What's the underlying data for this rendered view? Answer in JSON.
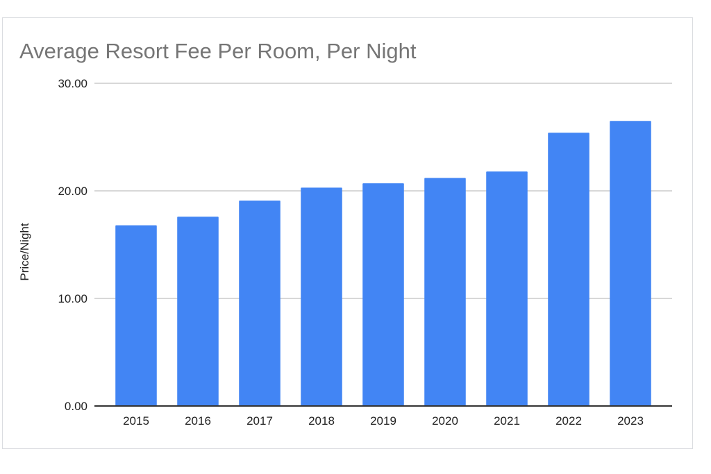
{
  "chart_data": {
    "type": "bar",
    "title": "Average Resort Fee Per Room, Per Night",
    "xlabel": "",
    "ylabel": "Price/Night",
    "categories": [
      "2015",
      "2016",
      "2017",
      "2018",
      "2019",
      "2020",
      "2021",
      "2022",
      "2023"
    ],
    "values": [
      16.8,
      17.6,
      19.1,
      20.3,
      20.7,
      21.2,
      21.8,
      25.4,
      26.5
    ],
    "ylim": [
      0,
      30
    ],
    "yticks": [
      "0.00",
      "10.00",
      "20.00",
      "30.00"
    ],
    "grid": true,
    "legend": "none",
    "bar_color": "#4285f4",
    "grid_color": "#cccccc",
    "axis_color": "#333333"
  }
}
